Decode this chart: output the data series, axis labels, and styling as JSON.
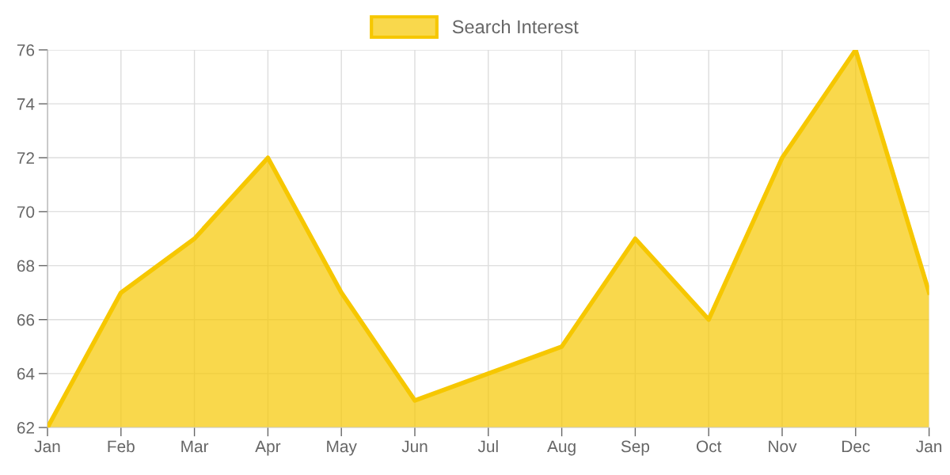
{
  "chart_data": {
    "type": "area",
    "categories": [
      "Jan",
      "Feb",
      "Mar",
      "Apr",
      "May",
      "Jun",
      "Jul",
      "Aug",
      "Sep",
      "Oct",
      "Nov",
      "Dec",
      "Jan"
    ],
    "series": [
      {
        "name": "Search Interest",
        "color": "#f6c700",
        "values": [
          62,
          67,
          69,
          72,
          67,
          63,
          64,
          65,
          69,
          66,
          72,
          76,
          67
        ]
      }
    ],
    "ylim": [
      62,
      76
    ],
    "yticks": [
      62,
      64,
      66,
      68,
      70,
      72,
      74,
      76
    ],
    "grid": true,
    "legend": "top"
  }
}
